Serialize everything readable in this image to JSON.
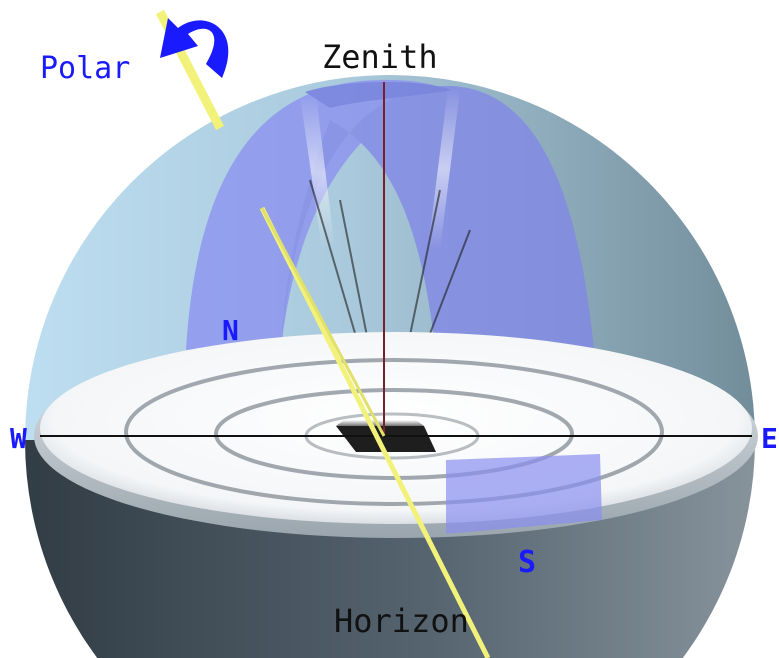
{
  "labels": {
    "polar": "Polar",
    "zenith": "Zenith",
    "horizon": "Horizon",
    "north": "N",
    "south": "S",
    "west": "W",
    "east": "E"
  },
  "colors": {
    "label_blue": "#1a1aff",
    "label_black": "#111111",
    "sun_ray": "#f2f27a",
    "arc_band": "#8a8ff0",
    "zenith_line": "#7a1f2a",
    "sphere_upper": "#a9cbe0",
    "sphere_lower": "#4a565e",
    "horizon_disc": "#ffffff"
  },
  "icons": {
    "rotation_arrow": "curved-arrow-icon"
  }
}
